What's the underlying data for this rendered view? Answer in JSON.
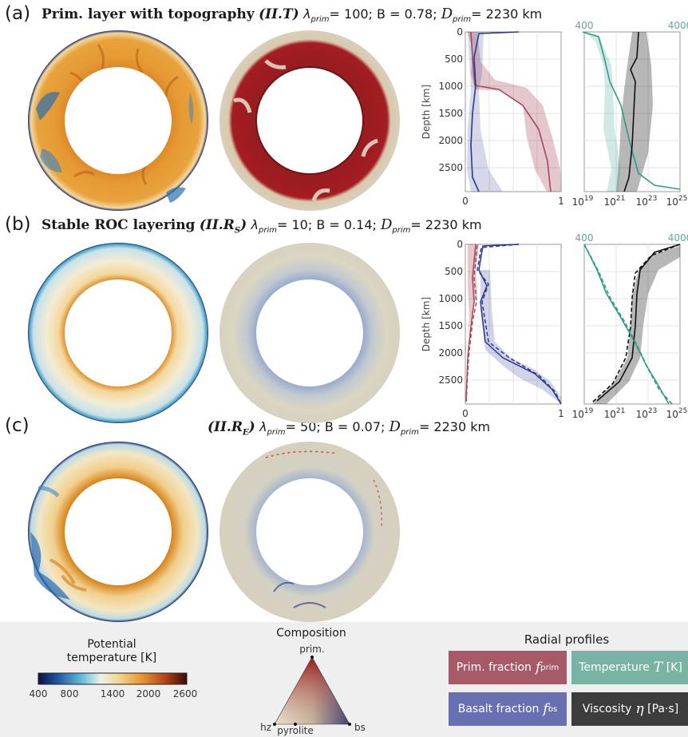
{
  "panels": [
    {
      "letter": "(a)",
      "name_bold": "Prim. layer with topography",
      "code": "(II.T)",
      "lambda": "λ",
      "lambda_sub": "prim",
      "lambda_val": "= 100; ",
      "b_text": "B = 0.78; ",
      "d": "D",
      "d_sub": "prim",
      "d_val": "= 2230 km"
    },
    {
      "letter": "(b)",
      "name_bold": "Stable ROC layering",
      "code": "(II.R",
      "code_sub": "S",
      "code_end": ")",
      "lambda": "λ",
      "lambda_sub": "prim",
      "lambda_val": "= 10; ",
      "b_text": "B = 0.14; ",
      "d": "D",
      "d_sub": "prim",
      "d_val": "= 2230 km"
    },
    {
      "letter": "(c)",
      "name_bold": "",
      "code": "(II.R",
      "code_sub": "E",
      "code_end": ")",
      "lambda": "λ",
      "lambda_sub": "prim",
      "lambda_val": "= 50; ",
      "b_text": "B = 0.07; ",
      "d": "D",
      "d_sub": "prim",
      "d_val": "= 2230 km"
    }
  ],
  "profile_axes": {
    "ylabel": "Depth [km]",
    "depth_ticks": [
      "0",
      "500",
      "1000",
      "1500",
      "2000",
      "2500"
    ],
    "fraction_ticks": [
      "0",
      "1"
    ],
    "viscosity_ticks": [
      "10",
      "10",
      "10",
      "10"
    ],
    "viscosity_exponents": [
      "19",
      "21",
      "23",
      "25"
    ],
    "temperature_ticks": [
      "400",
      "4000"
    ]
  },
  "legend": {
    "temp_title_1": "Potential",
    "temp_title_2": "temperature [K]",
    "temp_ticks": [
      "400",
      "800",
      "1400",
      "2000",
      "2600"
    ],
    "comp_title": "Composition",
    "comp_top": "prim.",
    "comp_left": "hz",
    "comp_right": "bs",
    "comp_mid": "pyrolite",
    "radial_title": "Radial profiles",
    "prim_label": "Prim. fraction",
    "prim_sym": "f",
    "prim_sub": "prim",
    "temp_label": "Temperature",
    "temp_sym": "T",
    "temp_unit": "[K]",
    "basalt_label": "Basalt fraction",
    "basalt_sym": "f",
    "basalt_sub": "bs",
    "visc_label": "Viscosity",
    "visc_sym": "η",
    "visc_unit": "[Pa·s]"
  },
  "colors": {
    "prim": "#a4495a",
    "basalt": "#2d3a8c",
    "temperature": "#2f9c8a",
    "viscosity": "#111111",
    "prim_box": "#a65a68",
    "temp_box": "#79b3a4",
    "basalt_box": "#6870b1",
    "visc_box": "#3c3c3c"
  }
}
